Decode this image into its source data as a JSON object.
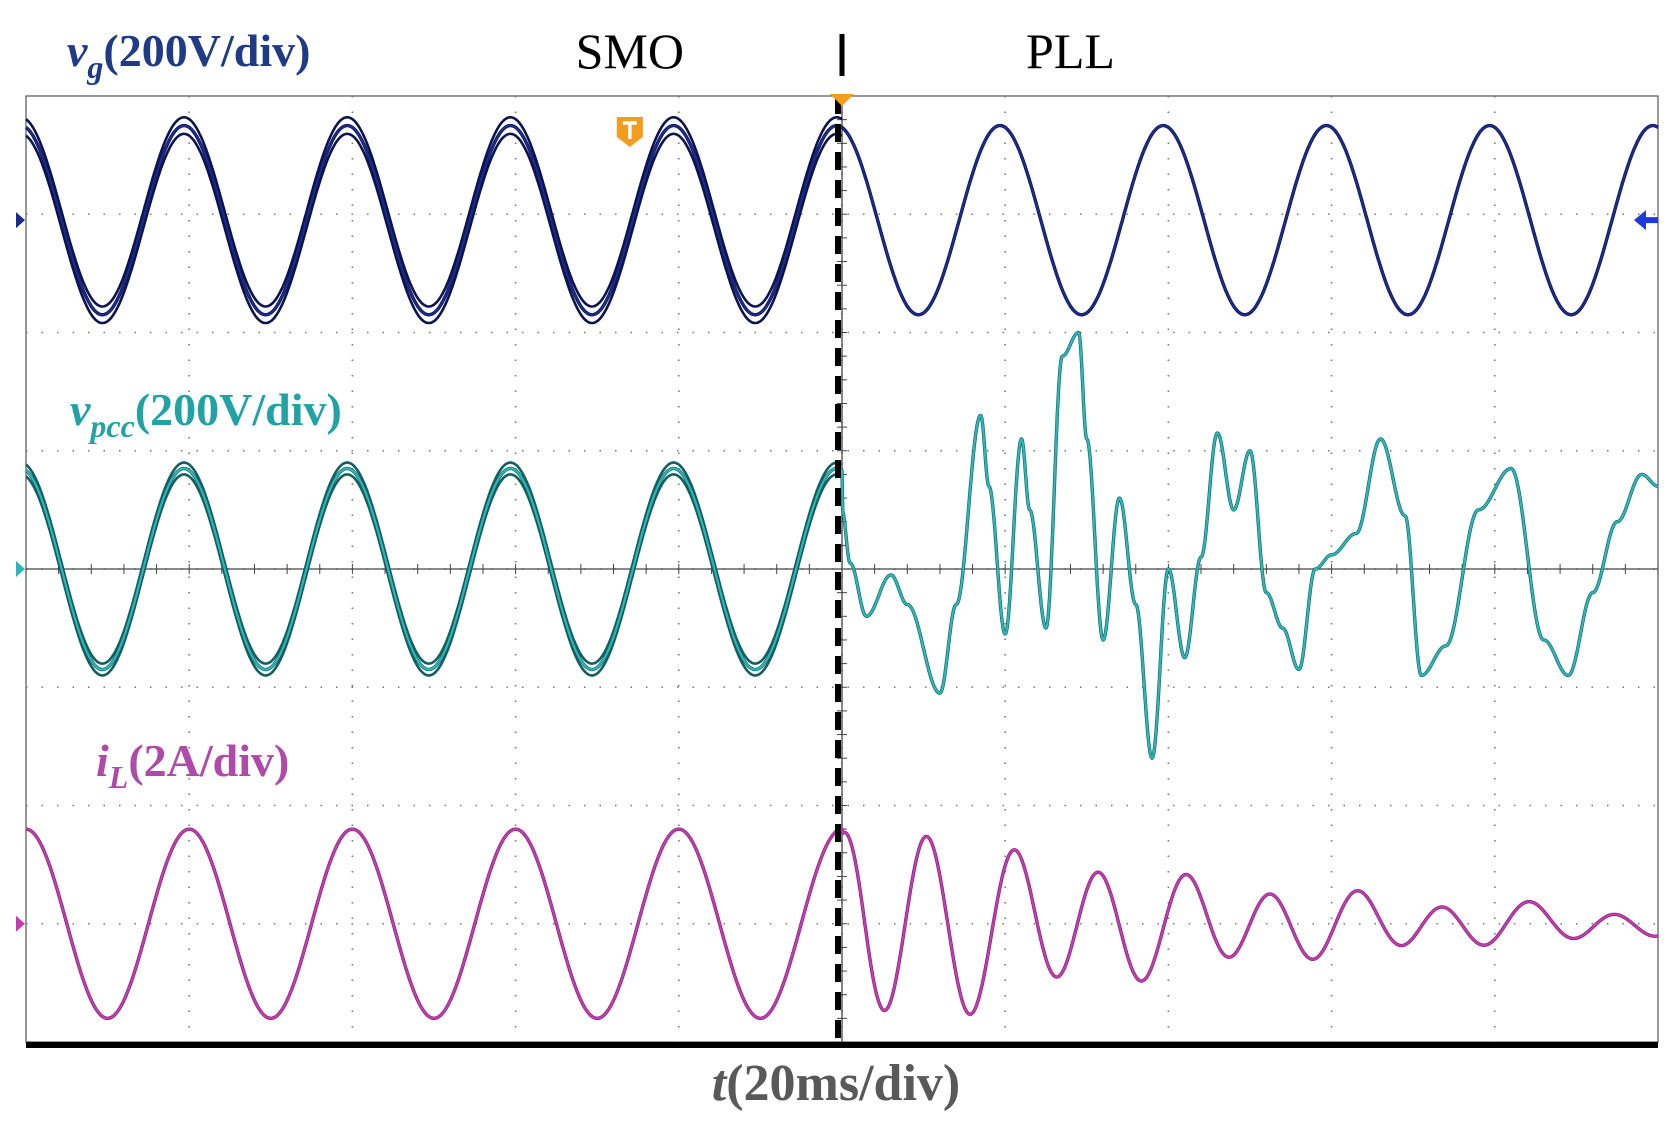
{
  "chart_data": {
    "type": "line",
    "title": "",
    "xlabel": {
      "var": "t",
      "unit": "(20ms/div)"
    },
    "x_divisions": 10,
    "y_divisions": 8,
    "time_per_div_ms": 20,
    "xlim_ms": [
      0,
      200
    ],
    "switch_time_ms": 100,
    "regions": [
      {
        "name": "SMO",
        "x_center_ms": 74
      },
      {
        "name": "PLL",
        "x_center_ms": 128
      }
    ],
    "series": [
      {
        "name": "vg",
        "label_main": "v",
        "label_sub": "g",
        "label_unit": "(200V/div)",
        "color": "#1c2a8a",
        "color_dark": "#0c1450",
        "color_label": "#1f3a86",
        "ref_level_div": 2.95,
        "amplitude_div": 0.8,
        "freq_hz": 50,
        "ripple": 0.07,
        "after_switch": [
          {
            "type": "sine",
            "amplitude_div": 0.8,
            "phase_shift_ms": 0,
            "freq_hz": 50
          }
        ]
      },
      {
        "name": "vpcc",
        "label_main": "v",
        "label_sub": "pcc",
        "label_unit": "(200V/div)",
        "color": "#2bb7b9",
        "color_dark": "#155e60",
        "color_label": "#21a3a6",
        "ref_level_div": 0,
        "amplitude_div": 0.85,
        "freq_hz": 50,
        "ripple": 0.05,
        "after_switch_points": [
          [
            100,
            0.5
          ],
          [
            101,
            0.05
          ],
          [
            103,
            -0.4
          ],
          [
            106,
            -0.05
          ],
          [
            108,
            -0.3
          ],
          [
            112,
            -1.05
          ],
          [
            114,
            -0.3
          ],
          [
            117,
            1.3
          ],
          [
            118,
            0.7
          ],
          [
            120,
            -0.55
          ],
          [
            122,
            1.1
          ],
          [
            123,
            0.5
          ],
          [
            125,
            -0.5
          ],
          [
            127,
            1.8
          ],
          [
            129,
            2.0
          ],
          [
            130,
            1.1
          ],
          [
            132,
            -0.6
          ],
          [
            134,
            0.6
          ],
          [
            136,
            -0.3
          ],
          [
            138,
            -1.6
          ],
          [
            140,
            0.0
          ],
          [
            142,
            -0.75
          ],
          [
            144,
            0.1
          ],
          [
            146,
            1.15
          ],
          [
            148,
            0.5
          ],
          [
            150,
            1.0
          ],
          [
            152,
            -0.2
          ],
          [
            154,
            -0.5
          ],
          [
            156,
            -0.85
          ],
          [
            158,
            0.0
          ],
          [
            160,
            0.12
          ],
          [
            163,
            0.3
          ],
          [
            166,
            1.1
          ],
          [
            169,
            0.45
          ],
          [
            171,
            -0.9
          ],
          [
            174,
            -0.65
          ],
          [
            178,
            0.5
          ],
          [
            182,
            0.85
          ],
          [
            186,
            -0.6
          ],
          [
            189,
            -0.9
          ],
          [
            192,
            -0.2
          ],
          [
            195,
            0.4
          ],
          [
            198,
            0.8
          ],
          [
            200,
            0.7
          ]
        ]
      },
      {
        "name": "iL",
        "label_main": "i",
        "label_sub": "L",
        "label_unit": "(2A/div)",
        "color": "#c43bb0",
        "color_dark": "#7a2070",
        "color_label": "#b04aa8",
        "ref_level_div": -3.0,
        "amplitude_div": 0.8,
        "freq_hz": 50,
        "ripple": 0.0,
        "after_switch_damped": {
          "initial_div": 0.8,
          "osc_amplitude_div": 0.95,
          "osc_freq_hz": 95,
          "decay_tau_ms": 45,
          "mean_div": 0.0
        }
      }
    ]
  }
}
